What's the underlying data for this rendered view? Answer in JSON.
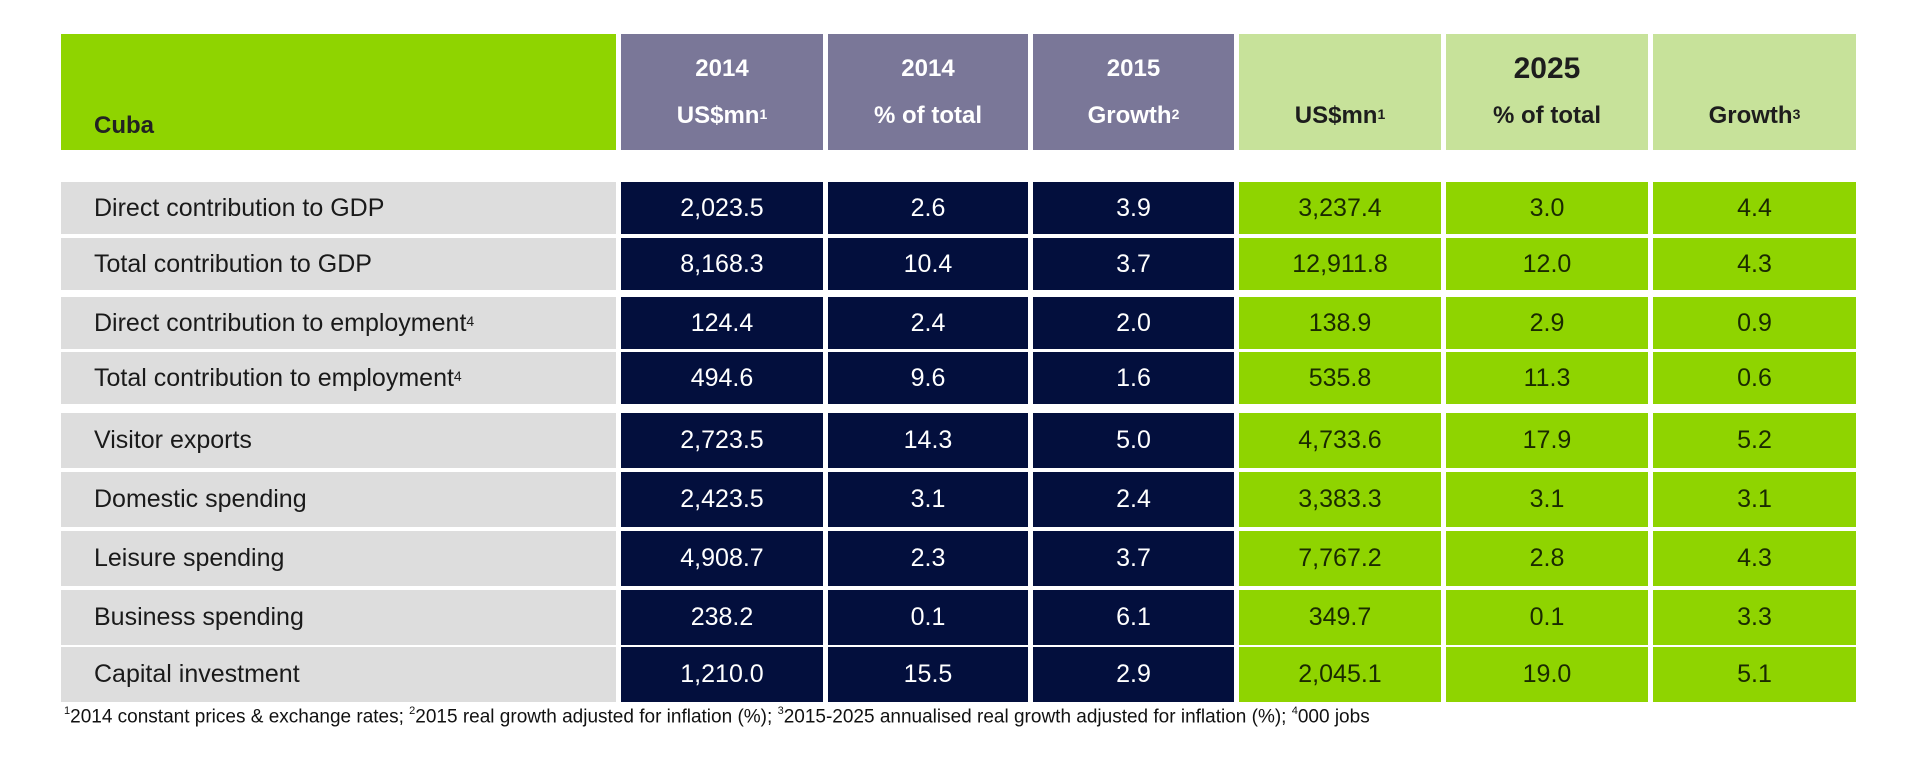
{
  "header": {
    "region": "Cuba",
    "cols": [
      {
        "year": "2014",
        "label": "US$mn",
        "sup": "1"
      },
      {
        "year": "2014",
        "label": "% of total",
        "sup": ""
      },
      {
        "year": "2015",
        "label": "Growth",
        "sup": "2"
      },
      {
        "year": "",
        "label": "US$mn",
        "sup": "1"
      },
      {
        "year": "2025",
        "label": "% of total",
        "sup": ""
      },
      {
        "year": "",
        "label": "Growth",
        "sup": "3"
      }
    ]
  },
  "rows": [
    {
      "label": "Direct contribution to GDP",
      "sup": "",
      "v": [
        "2,023.5",
        "2.6",
        "3.9",
        "3,237.4",
        "3.0",
        "4.4"
      ]
    },
    {
      "label": "Total contribution to GDP",
      "sup": "",
      "v": [
        "8,168.3",
        "10.4",
        "3.7",
        "12,911.8",
        "12.0",
        "4.3"
      ]
    },
    {
      "label": "Direct contribution to employment",
      "sup": "4",
      "v": [
        "124.4",
        "2.4",
        "2.0",
        "138.9",
        "2.9",
        "0.9"
      ]
    },
    {
      "label": "Total contribution to employment",
      "sup": "4",
      "v": [
        "494.6",
        "9.6",
        "1.6",
        "535.8",
        "11.3",
        "0.6"
      ]
    },
    {
      "label": "Visitor exports",
      "sup": "",
      "v": [
        "2,723.5",
        "14.3",
        "5.0",
        "4,733.6",
        "17.9",
        "5.2"
      ]
    },
    {
      "label": "Domestic spending",
      "sup": "",
      "v": [
        "2,423.5",
        "3.1",
        "2.4",
        "3,383.3",
        "3.1",
        "3.1"
      ]
    },
    {
      "label": "Leisure spending",
      "sup": "",
      "v": [
        "4,908.7",
        "2.3",
        "3.7",
        "7,767.2",
        "2.8",
        "4.3"
      ]
    },
    {
      "label": "Business spending",
      "sup": "",
      "v": [
        "238.2",
        "0.1",
        "6.1",
        "349.7",
        "0.1",
        "3.3"
      ]
    },
    {
      "label": "Capital investment",
      "sup": "",
      "v": [
        "1,210.0",
        "15.5",
        "2.9",
        "2,045.1",
        "19.0",
        "5.1"
      ]
    }
  ],
  "footnote": {
    "parts": [
      {
        "sup": "1",
        "text": "2014 constant prices & exchange rates; "
      },
      {
        "sup": "2",
        "text": "2015 real growth adjusted for inflation (%); "
      },
      {
        "sup": "3",
        "text": "2015-2025 annualised real growth adjusted for inflation (%); "
      },
      {
        "sup": "4",
        "text": "000 jobs"
      }
    ]
  },
  "colors": {
    "header_purple": "#7a7798",
    "header_light_green": "#c7e29a",
    "accent_green": "#8fd400",
    "navy": "#030f3d",
    "label_gray": "#dddddd"
  }
}
